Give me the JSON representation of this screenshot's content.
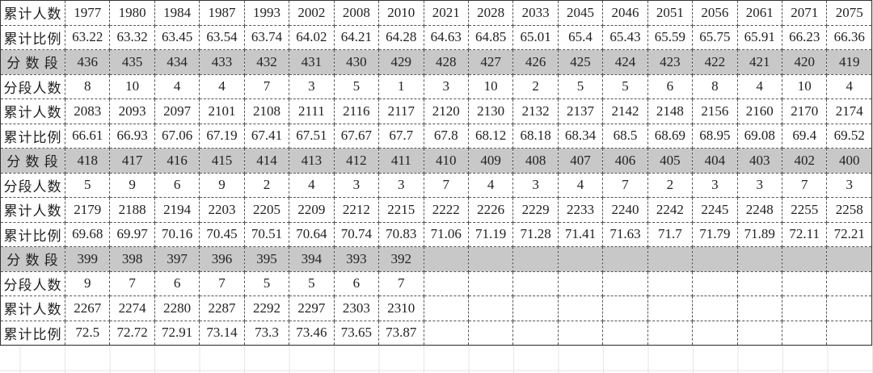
{
  "table": {
    "rows": [
      [
        "累计人数",
        "1977",
        "1980",
        "1984",
        "1987",
        "1993",
        "2002",
        "2008",
        "2010",
        "2021",
        "2028",
        "2033",
        "2045",
        "2046",
        "2051",
        "2056",
        "2061",
        "2071",
        "2075"
      ],
      [
        "累计比例",
        "63.22",
        "63.32",
        "63.45",
        "63.54",
        "63.74",
        "64.02",
        "64.21",
        "64.28",
        "64.63",
        "64.85",
        "65.01",
        "65.4",
        "65.43",
        "65.59",
        "65.75",
        "65.91",
        "66.23",
        "66.36"
      ],
      [
        "分 数 段",
        "436",
        "435",
        "434",
        "433",
        "432",
        "431",
        "430",
        "429",
        "428",
        "427",
        "426",
        "425",
        "424",
        "423",
        "422",
        "421",
        "420",
        "419"
      ],
      [
        "分段人数",
        "8",
        "10",
        "4",
        "4",
        "7",
        "3",
        "5",
        "1",
        "3",
        "10",
        "2",
        "5",
        "5",
        "6",
        "8",
        "4",
        "10",
        "4"
      ],
      [
        "累计人数",
        "2083",
        "2093",
        "2097",
        "2101",
        "2108",
        "2111",
        "2116",
        "2117",
        "2120",
        "2130",
        "2132",
        "2137",
        "2142",
        "2148",
        "2156",
        "2160",
        "2170",
        "2174"
      ],
      [
        "累计比例",
        "66.61",
        "66.93",
        "67.06",
        "67.19",
        "67.41",
        "67.51",
        "67.67",
        "67.7",
        "67.8",
        "68.12",
        "68.18",
        "68.34",
        "68.5",
        "68.69",
        "68.95",
        "69.08",
        "69.4",
        "69.52"
      ],
      [
        "分 数 段",
        "418",
        "417",
        "416",
        "415",
        "414",
        "413",
        "412",
        "411",
        "410",
        "409",
        "408",
        "407",
        "406",
        "405",
        "404",
        "403",
        "402",
        "400"
      ],
      [
        "分段人数",
        "5",
        "9",
        "6",
        "9",
        "2",
        "4",
        "3",
        "3",
        "7",
        "4",
        "3",
        "4",
        "7",
        "2",
        "3",
        "3",
        "7",
        "3"
      ],
      [
        "累计人数",
        "2179",
        "2188",
        "2194",
        "2203",
        "2205",
        "2209",
        "2212",
        "2215",
        "2222",
        "2226",
        "2229",
        "2233",
        "2240",
        "2242",
        "2245",
        "2248",
        "2255",
        "2258"
      ],
      [
        "累计比例",
        "69.68",
        "69.97",
        "70.16",
        "70.45",
        "70.51",
        "70.64",
        "70.74",
        "70.83",
        "71.06",
        "71.19",
        "71.28",
        "71.41",
        "71.63",
        "71.7",
        "71.79",
        "71.89",
        "72.11",
        "72.21"
      ],
      [
        "分 数 段",
        "399",
        "398",
        "397",
        "396",
        "395",
        "394",
        "393",
        "392"
      ],
      [
        "分段人数",
        "9",
        "7",
        "6",
        "7",
        "5",
        "5",
        "6",
        "7"
      ],
      [
        "累计人数",
        "2267",
        "2274",
        "2280",
        "2287",
        "2292",
        "2297",
        "2303",
        "2310"
      ],
      [
        "累计比例",
        "72.5",
        "72.72",
        "72.91",
        "73.14",
        "73.3",
        "73.46",
        "73.65",
        "73.87"
      ]
    ]
  }
}
